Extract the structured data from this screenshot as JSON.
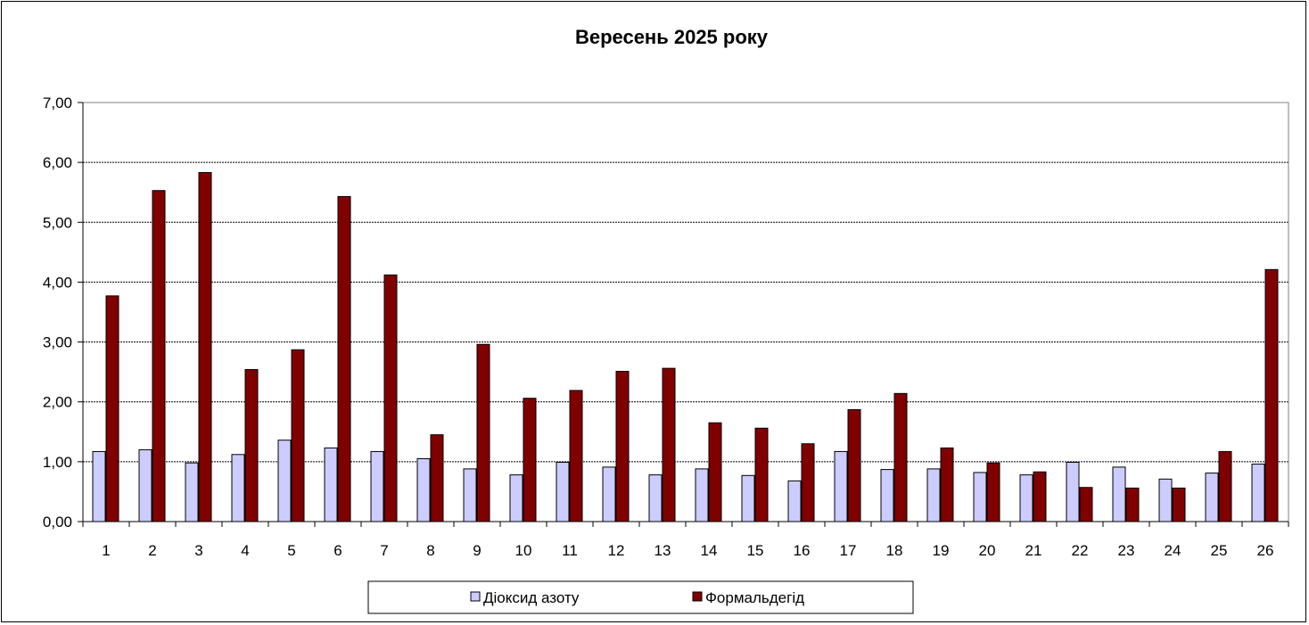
{
  "chart_data": {
    "type": "bar",
    "title": "Вересень 2025 року",
    "xlabel": "",
    "ylabel": "",
    "ylim": [
      0,
      7
    ],
    "yticks": [
      "0,00",
      "1,00",
      "2,00",
      "3,00",
      "4,00",
      "5,00",
      "6,00",
      "7,00"
    ],
    "grid": true,
    "legend_position": "bottom",
    "categories": [
      "1",
      "2",
      "3",
      "4",
      "5",
      "6",
      "7",
      "8",
      "9",
      "10",
      "11",
      "12",
      "13",
      "14",
      "15",
      "16",
      "17",
      "18",
      "19",
      "20",
      "21",
      "22",
      "23",
      "24",
      "25",
      "26"
    ],
    "series": [
      {
        "name": "Діоксид азоту",
        "color": "#ccccff",
        "values": [
          1.17,
          1.2,
          0.98,
          1.12,
          1.36,
          1.23,
          1.17,
          1.05,
          0.88,
          0.78,
          0.99,
          0.91,
          0.78,
          0.88,
          0.77,
          0.68,
          1.17,
          0.87,
          0.88,
          0.82,
          0.78,
          0.99,
          0.91,
          0.71,
          0.81,
          0.96
        ]
      },
      {
        "name": "Формальдегід",
        "color": "#800000",
        "values": [
          3.77,
          5.53,
          5.83,
          2.54,
          2.87,
          5.43,
          4.12,
          1.45,
          2.96,
          2.06,
          2.19,
          2.51,
          2.56,
          1.65,
          1.56,
          1.3,
          1.87,
          2.14,
          1.23,
          0.98,
          0.83,
          0.57,
          0.56,
          0.56,
          1.17,
          4.21
        ]
      }
    ]
  }
}
